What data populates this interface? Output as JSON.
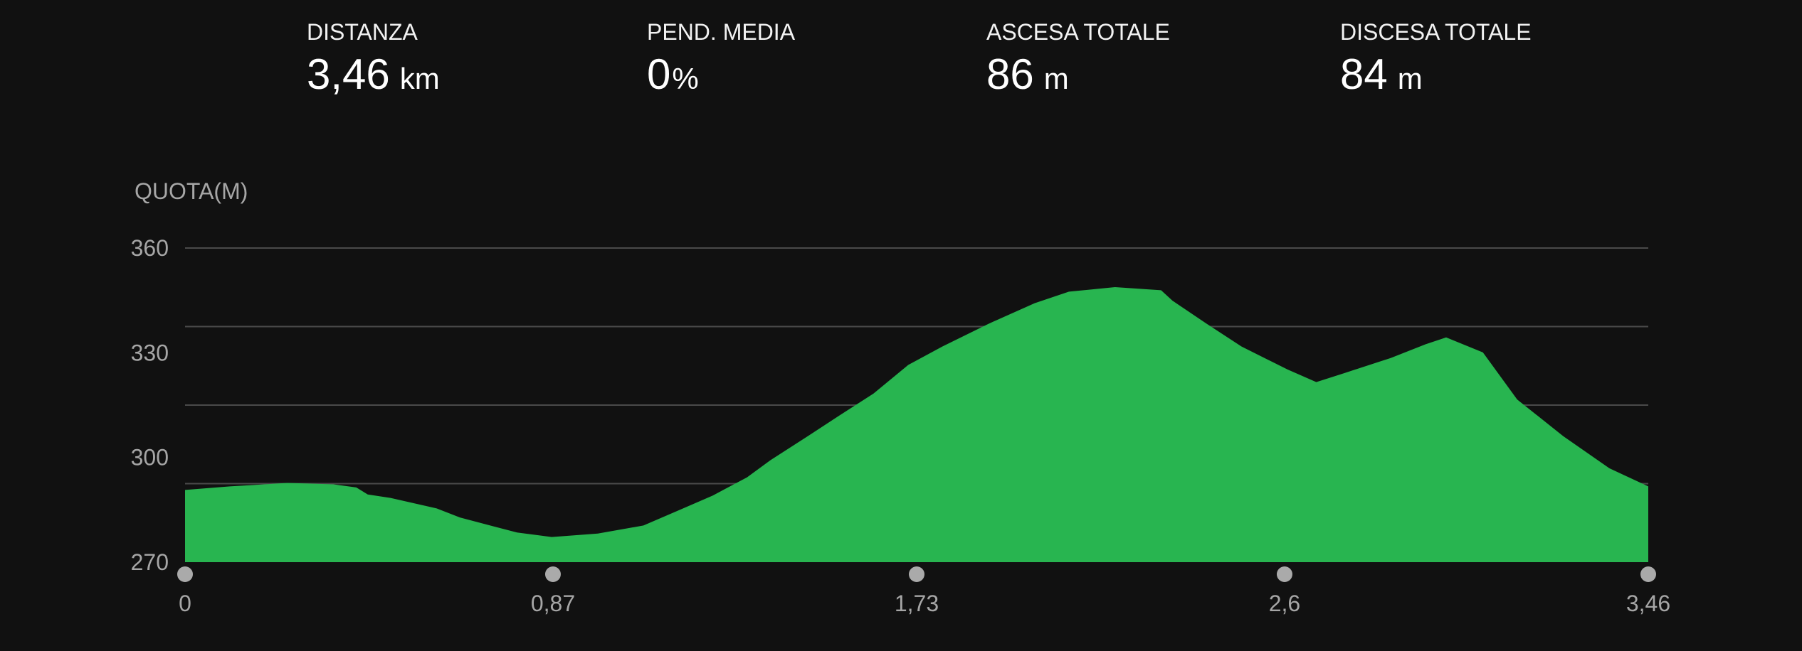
{
  "stats": [
    {
      "label": "DISTANZA",
      "value": "3,46",
      "unit": "km"
    },
    {
      "label": "PEND. MEDIA",
      "value": "0",
      "unit": "%"
    },
    {
      "label": "ASCESA TOTALE",
      "value": "86",
      "unit": "m"
    },
    {
      "label": "DISCESA TOTALE",
      "value": "84",
      "unit": "m"
    }
  ],
  "chart_data": {
    "type": "area",
    "y_label": "QUOTA(M)",
    "color": "#28b550",
    "x": [
      0,
      0.106,
      0.242,
      0.351,
      0.405,
      0.432,
      0.486,
      0.595,
      0.65,
      0.731,
      0.785,
      0.867,
      0.976,
      1.084,
      1.166,
      1.248,
      1.329,
      1.384,
      1.465,
      1.547,
      1.628,
      1.71,
      1.791,
      1.9,
      2.009,
      2.09,
      2.199,
      2.308,
      2.335,
      2.416,
      2.498,
      2.607,
      2.675,
      2.742,
      2.851,
      2.933,
      2.982,
      3.069,
      3.15,
      3.259,
      3.368,
      3.46
    ],
    "values": [
      290.7,
      291.7,
      292.7,
      292.3,
      291.4,
      289.4,
      288.4,
      285.4,
      282.8,
      280.2,
      278.5,
      277.2,
      278.2,
      280.5,
      284.8,
      289.1,
      294.3,
      299.2,
      305.5,
      312,
      318.3,
      326.5,
      331.8,
      338.3,
      344.2,
      347.5,
      348.8,
      347.9,
      344.9,
      338.3,
      331.8,
      325.2,
      321.6,
      324.2,
      328.5,
      332.4,
      334.4,
      330.1,
      316.6,
      306.1,
      296.9,
      291.7
    ],
    "xlim": [
      0,
      3.46
    ],
    "xticks": [
      0,
      {
        "value": 0.87,
        "label": "0,87"
      },
      {
        "value": 1.73,
        "label": "1,73"
      },
      {
        "value": 2.6,
        "label": "2,6"
      },
      {
        "value": 3.46,
        "label": "3,46"
      }
    ],
    "ylim": [
      270,
      360
    ],
    "yticks": [
      270,
      300,
      330,
      360
    ],
    "gridlines": [
      292.5,
      315,
      337.5,
      360
    ]
  }
}
